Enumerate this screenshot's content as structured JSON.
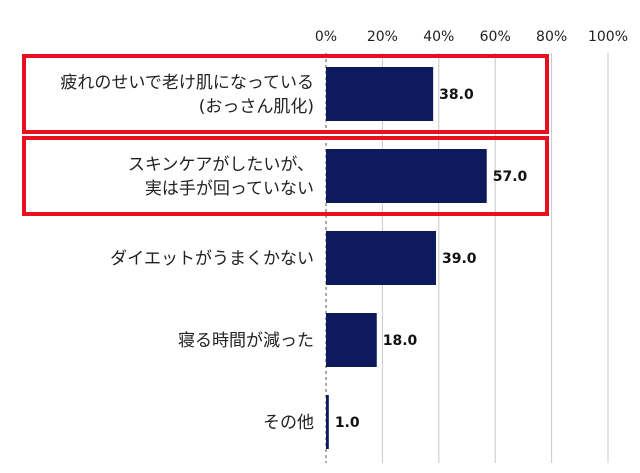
{
  "chart_data": {
    "type": "bar",
    "orientation": "horizontal",
    "title": "",
    "xlabel": "",
    "ylabel": "",
    "xlim": [
      0,
      100
    ],
    "ticks": [
      "0%",
      "20%",
      "40%",
      "60%",
      "80%",
      "100%"
    ],
    "tick_values": [
      0,
      20,
      40,
      60,
      80,
      100
    ],
    "grid": true,
    "categories": [
      [
        "疲れのせいで老け肌になっている",
        "(おっさん肌化)"
      ],
      [
        "スキンケアがしたいが、",
        "実は手が回っていない"
      ],
      [
        "ダイエットがうまくかない"
      ],
      [
        "寝る時間が減った"
      ],
      [
        "その他"
      ]
    ],
    "values": [
      38.0,
      57.0,
      39.0,
      18.0,
      1.0
    ],
    "value_labels": [
      "38.0",
      "57.0",
      "39.0",
      "18.0",
      "1.0"
    ],
    "highlighted": [
      0,
      1
    ],
    "colors": {
      "bar": "#0d1a5e",
      "highlight": "#e8101e",
      "grid": "#c8c8c8"
    }
  }
}
